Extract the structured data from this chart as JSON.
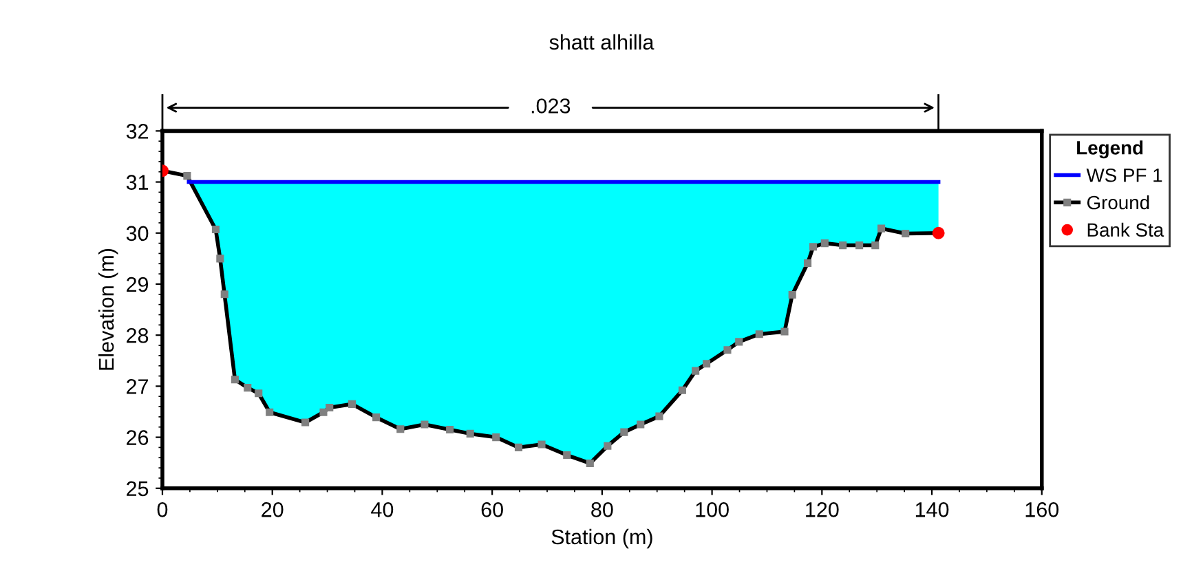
{
  "chart_data": {
    "type": "line",
    "title": "shatt alhilla",
    "xlabel": "Station (m)",
    "ylabel": "Elevation (m)",
    "legend_title": "Legend",
    "legend": "right",
    "xlim": [
      0,
      160
    ],
    "xticks": [
      0,
      20,
      40,
      60,
      80,
      100,
      120,
      140,
      160
    ],
    "ylim": [
      25,
      32
    ],
    "yticks": [
      25,
      26,
      27,
      28,
      29,
      30,
      31,
      32
    ],
    "grid": false,
    "annotations": [
      ".023"
    ],
    "series": [
      {
        "name": "WS PF 1",
        "color": "#0000ff",
        "marker": "none",
        "x": [
          4.8,
          9.7,
          10.5,
          11.3,
          13.2,
          15.5,
          17.5,
          19.5,
          26,
          29.3,
          30.4,
          34.5,
          38.9,
          43.3,
          47.7,
          52.3,
          56,
          60.7,
          64.8,
          69,
          73.6,
          77.8,
          81,
          84,
          87,
          90.4,
          94.6,
          97,
          99,
          102.8,
          104.9,
          108.6,
          113.2,
          114.6,
          117.4,
          118.4,
          120.5,
          123.8,
          126.8,
          129.7,
          130.8,
          135.2,
          141.2
        ],
        "values": [
          31.0,
          31.0,
          31.0,
          31.0,
          31.0,
          31.0,
          31.0,
          31.0,
          31.0,
          31.0,
          31.0,
          31.0,
          31.0,
          31.0,
          31.0,
          31.0,
          31.0,
          31.0,
          31.0,
          31.0,
          31.0,
          31.0,
          31.0,
          31.0,
          31.0,
          31.0,
          31.0,
          31.0,
          31.0,
          31.0,
          31.0,
          31.0,
          31.0,
          31.0,
          31.0,
          31.0,
          31.0,
          31.0,
          31.0,
          31.0,
          31.0,
          31.0,
          31.0
        ],
        "upper": [
          31.0,
          31.0,
          31.0,
          31.0,
          31.0,
          31.0,
          31.0,
          31.0,
          31.0,
          31.0,
          31.0,
          31.0,
          31.0,
          31.0,
          31.0,
          31.0,
          31.0,
          31.0,
          31.0,
          31.0,
          31.0,
          31.0,
          31.0,
          31.0,
          31.0,
          31.0,
          31.0,
          31.0,
          31.0,
          31.0,
          31.0,
          31.0,
          31.0,
          31.0,
          31.0,
          31.0,
          31.0,
          31.0,
          31.0,
          31.0,
          31.0,
          31.0,
          31.0
        ],
        "lower": [
          31.0,
          30.07,
          29.5,
          28.8,
          27.13,
          26.97,
          26.86,
          26.49,
          26.29,
          26.49,
          26.58,
          26.65,
          26.39,
          26.16,
          26.25,
          26.15,
          26.07,
          26.0,
          25.8,
          25.86,
          25.65,
          25.49,
          25.83,
          26.1,
          26.25,
          26.41,
          26.92,
          27.3,
          27.44,
          27.71,
          27.87,
          28.02,
          28.07,
          28.79,
          29.41,
          29.73,
          29.8,
          29.76,
          29.76,
          29.76,
          30.09,
          29.99,
          30.0
        ]
      },
      {
        "name": "Ground",
        "color": "#000000",
        "marker": "square",
        "x": [
          0,
          4.5,
          9.7,
          10.5,
          11.3,
          13.2,
          15.5,
          17.5,
          19.5,
          26,
          29.3,
          30.4,
          34.5,
          38.9,
          43.3,
          47.7,
          52.3,
          56,
          60.7,
          64.8,
          69,
          73.6,
          77.8,
          81,
          84,
          87,
          90.4,
          94.6,
          97,
          99,
          102.8,
          104.9,
          108.6,
          113.2,
          114.6,
          117.4,
          118.4,
          120.5,
          123.8,
          126.8,
          129.7,
          130.8,
          135.2,
          141.2
        ],
        "values": [
          31.22,
          31.12,
          30.07,
          29.5,
          28.8,
          27.13,
          26.97,
          26.86,
          26.49,
          26.29,
          26.49,
          26.58,
          26.65,
          26.39,
          26.16,
          26.25,
          26.15,
          26.07,
          26.0,
          25.8,
          25.86,
          25.65,
          25.49,
          25.83,
          26.1,
          26.25,
          26.41,
          26.92,
          27.3,
          27.44,
          27.71,
          27.87,
          28.02,
          28.07,
          28.79,
          29.41,
          29.73,
          29.8,
          29.76,
          29.76,
          29.76,
          30.09,
          29.99,
          30.0
        ]
      },
      {
        "name": "Bank Sta",
        "type": "scatter",
        "color": "#ff0000",
        "marker": "circle",
        "x": [
          0,
          141.2
        ],
        "values": [
          31.22,
          30.0
        ]
      }
    ]
  }
}
